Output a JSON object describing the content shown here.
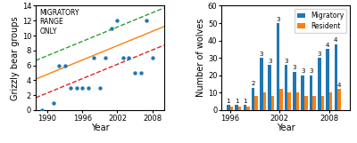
{
  "chart_data": [
    {
      "type": "scatter",
      "xlabel": "Year",
      "ylabel": "Grizzly bear groups",
      "annotations": [
        "MIGRATORY\nRANGE\nONLY"
      ],
      "xlim": [
        1988,
        2010
      ],
      "ylim": [
        0,
        14
      ],
      "xticks": [
        1990,
        1996,
        2002,
        2008
      ],
      "yticks": [
        0,
        2,
        4,
        6,
        8,
        10,
        12,
        14
      ],
      "series": [
        {
          "type": "scatter",
          "x": [
            1989,
            1991,
            1992,
            1993,
            1994,
            1995,
            1996,
            1997,
            1998,
            1999,
            2000,
            2001,
            2002,
            2003,
            2004,
            2005,
            2006,
            2007,
            2008
          ],
          "values": [
            0,
            1,
            6,
            6,
            3,
            3,
            3,
            3,
            7,
            3,
            7,
            11,
            12,
            7,
            7,
            5,
            5,
            12,
            7
          ]
        },
        {
          "type": "line",
          "line_style": "solid",
          "x": [
            1988,
            2010
          ],
          "values": [
            4.16,
            11.2
          ]
        },
        {
          "type": "line",
          "line_style": "dashed",
          "x": [
            1988,
            2010
          ],
          "values": [
            6.66,
            13.7
          ]
        },
        {
          "type": "line",
          "line_style": "dashed",
          "x": [
            1988,
            2010
          ],
          "values": [
            1.66,
            8.7
          ]
        }
      ]
    },
    {
      "type": "bar",
      "xlabel": "Year",
      "ylabel": "Number of wolves",
      "x": [
        1996,
        1997,
        1998,
        1999,
        2000,
        2001,
        2002,
        2003,
        2004,
        2005,
        2006,
        2007,
        2008,
        2009
      ],
      "xlim": [
        1995.0,
        2010.5
      ],
      "ylim": [
        0,
        60
      ],
      "xticks": [
        1996,
        2002,
        2008
      ],
      "yticks": [
        0,
        10,
        20,
        30,
        40,
        50,
        60
      ],
      "legend": "upper right",
      "series": [
        {
          "name": "Migratory",
          "values": [
            3,
            3,
            3,
            13,
            30,
            26,
            50,
            26,
            22,
            20,
            20,
            30,
            35,
            38
          ],
          "packs": [
            1,
            1,
            1,
            2,
            3,
            3,
            3,
            3,
            3,
            3,
            3,
            3,
            4,
            4
          ]
        },
        {
          "name": "Resident",
          "values": [
            2,
            2,
            2,
            8,
            10,
            8,
            12,
            10,
            10,
            8,
            8,
            8,
            10,
            12
          ],
          "packs": [
            null,
            null,
            null,
            null,
            null,
            null,
            null,
            null,
            null,
            null,
            null,
            null,
            null,
            4
          ]
        }
      ]
    }
  ]
}
